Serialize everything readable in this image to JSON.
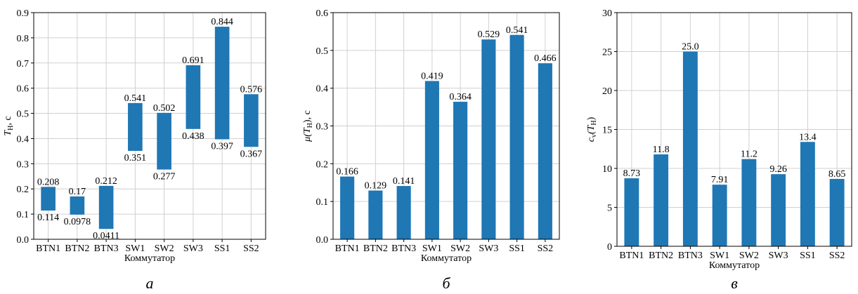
{
  "chart_data": [
    {
      "type": "bar",
      "subtype": "floating-range",
      "caption": "а",
      "ylabel_main": "T",
      "ylabel_sub": "H",
      "ylabel_rest": ", с",
      "xlabel": "Коммутатор",
      "categories": [
        "BTN1",
        "BTN2",
        "BTN3",
        "SW1",
        "SW2",
        "SW3",
        "SS1",
        "SS2"
      ],
      "low": [
        0.114,
        0.0978,
        0.0411,
        0.351,
        0.277,
        0.438,
        0.397,
        0.367
      ],
      "high": [
        0.208,
        0.17,
        0.212,
        0.541,
        0.502,
        0.691,
        0.844,
        0.576
      ],
      "low_labels": [
        "0.114",
        "0.0978",
        "0.0411",
        "0.351",
        "0.277",
        "0.438",
        "0.397",
        "0.367"
      ],
      "high_labels": [
        "0.208",
        "0.17",
        "0.212",
        "0.541",
        "0.502",
        "0.691",
        "0.844",
        "0.576"
      ],
      "ylim": [
        0,
        0.9
      ],
      "yticks": [
        "0.0",
        "0.1",
        "0.2",
        "0.3",
        "0.4",
        "0.5",
        "0.6",
        "0.7",
        "0.8",
        "0.9"
      ],
      "grid": true,
      "color": "#1f77b4"
    },
    {
      "type": "bar",
      "caption": "б",
      "ylabel_main": "μ(T",
      "ylabel_sub": "H",
      "ylabel_rest": "), с",
      "xlabel": "Коммутатор",
      "categories": [
        "BTN1",
        "BTN2",
        "BTN3",
        "SW1",
        "SW2",
        "SW3",
        "SS1",
        "SS2"
      ],
      "values": [
        0.166,
        0.129,
        0.141,
        0.419,
        0.364,
        0.529,
        0.541,
        0.466
      ],
      "value_labels": [
        "0.166",
        "0.129",
        "0.141",
        "0.419",
        "0.364",
        "0.529",
        "0.541",
        "0.466"
      ],
      "ylim": [
        0,
        0.6
      ],
      "yticks": [
        "0.0",
        "0.1",
        "0.2",
        "0.3",
        "0.4",
        "0.5",
        "0.6"
      ],
      "grid": true,
      "color": "#1f77b4"
    },
    {
      "type": "bar",
      "caption": "в",
      "ylabel_main": "c",
      "ylabel_sub": "v",
      "ylabel_rest": "(T",
      "ylabel_sub2": "H",
      "ylabel_rest2": ")",
      "xlabel": "Коммутатор",
      "categories": [
        "BTN1",
        "BTN2",
        "BTN3",
        "SW1",
        "SW2",
        "SW3",
        "SS1",
        "SS2"
      ],
      "values": [
        8.73,
        11.8,
        25.0,
        7.91,
        11.2,
        9.26,
        13.4,
        8.65
      ],
      "value_labels": [
        "8.73",
        "11.8",
        "25.0",
        "7.91",
        "11.2",
        "9.26",
        "13.4",
        "8.65"
      ],
      "ylim": [
        0,
        30
      ],
      "yticks": [
        "0",
        "5",
        "10",
        "15",
        "20",
        "25",
        "30"
      ],
      "grid": true,
      "color": "#1f77b4"
    }
  ]
}
